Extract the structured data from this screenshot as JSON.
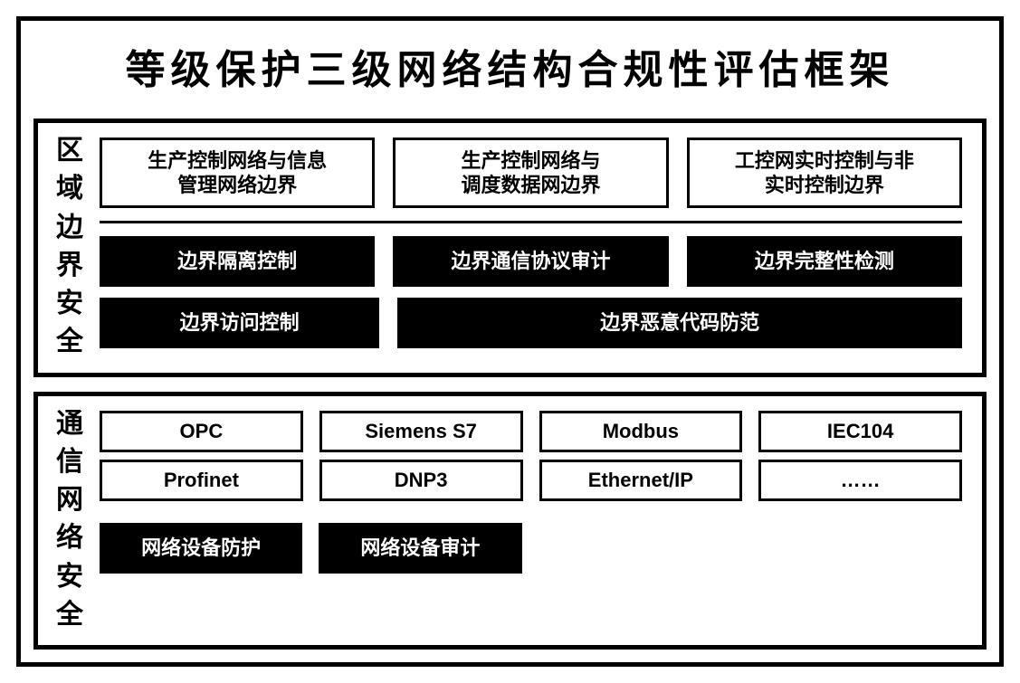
{
  "title": "等级保护三级网络结构合规性评估框架",
  "section1": {
    "vlabel": [
      "区",
      "域",
      "边",
      "界",
      "安",
      "全"
    ],
    "top_row": [
      "生产控制网络与信息\n管理网络边界",
      "生产控制网络与\n调度数据网边界",
      "工控网实时控制与非\n实时控制边界"
    ],
    "mid_row": [
      "边界隔离控制",
      "边界通信协议审计",
      "边界完整性检测"
    ],
    "bottom_row": [
      "边界访问控制",
      "边界恶意代码防范"
    ]
  },
  "section2": {
    "vlabel": [
      "通",
      "信",
      "网",
      "络",
      "安",
      "全"
    ],
    "row1": [
      "OPC",
      "Siemens S7",
      "Modbus",
      "IEC104"
    ],
    "row2": [
      "Profinet",
      "DNP3",
      "Ethernet/IP",
      "……"
    ],
    "row3": [
      "网络设备防护",
      "网络设备审计"
    ]
  },
  "colors": {
    "bg": "#ffffff",
    "border": "#000000",
    "dark_fill": "#000000",
    "dark_text": "#ffffff",
    "text": "#000000"
  }
}
